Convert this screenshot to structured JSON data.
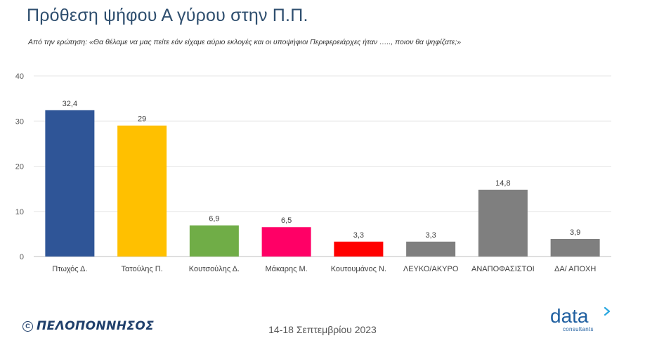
{
  "header": {
    "title": "Πρόθεση ψήφου Α γύρου στην Π.Π.",
    "subtitle": "Από την ερώτηση: «Θα θέλαμε να μας πείτε εάν είχαμε αύριο εκλογές και οι υποψήφιοι Περιφερειάρχες ήταν ….., ποιον θα ψηφίζατε;»"
  },
  "chart_data": {
    "type": "bar",
    "categories": [
      "Πτωχός Δ.",
      "Τατούλης Π.",
      "Κουτσούλης Δ.",
      "Μάκαρης Μ.",
      "Κουτουμάνος Ν.",
      "ΛΕΥΚΟ/ΑΚΥΡΟ",
      "ΑΝΑΠΟΦΑΣΙΣΤΟΙ",
      "ΔΑ/ ΑΠΟΧΗ"
    ],
    "values": [
      32.4,
      29,
      6.9,
      6.5,
      3.3,
      3.3,
      14.8,
      3.9
    ],
    "value_labels": [
      "32,4",
      "29",
      "6,9",
      "6,5",
      "3,3",
      "3,3",
      "14,8",
      "3,9"
    ],
    "colors": [
      "#2f5597",
      "#ffc000",
      "#70ad47",
      "#ff0066",
      "#ff0000",
      "#7f7f7f",
      "#7f7f7f",
      "#7f7f7f"
    ],
    "ylim": [
      0,
      40
    ],
    "yticks": [
      0,
      10,
      20,
      30,
      40
    ],
    "grid": true,
    "legend": "none"
  },
  "footer": {
    "publication": "ΠΕΛΟΠΟΝΝΗΣΟΣ",
    "copyright_symbol": "C",
    "date": "14-18 Σεπτεμβρίου 2023",
    "brand_name": "data",
    "brand_sub": "consultants"
  }
}
